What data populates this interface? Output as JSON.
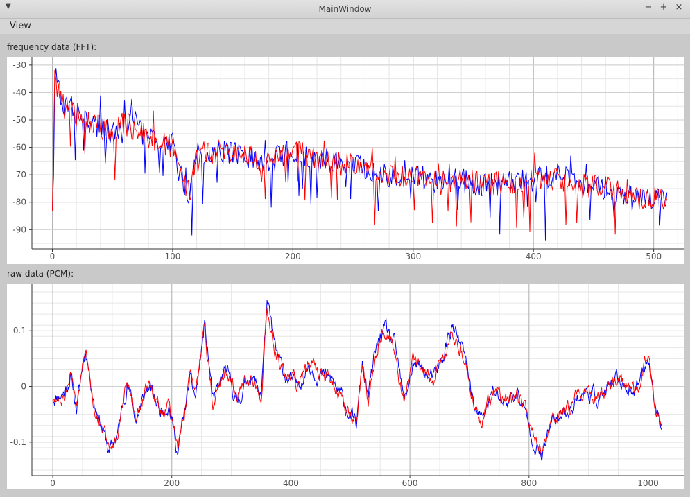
{
  "window": {
    "title": "MainWindow"
  },
  "menu": {
    "items": [
      {
        "label": "View"
      }
    ]
  },
  "fft_plot": {
    "label": "frequency data (FFT):"
  },
  "pcm_plot": {
    "label": "raw data (PCM):"
  },
  "chart_data": [
    {
      "type": "line",
      "title": "frequency data (FFT):",
      "xlabel": "",
      "ylabel": "",
      "xlim": [
        -17,
        525
      ],
      "ylim": [
        -97,
        -27
      ],
      "x_ticks": [
        0,
        100,
        200,
        300,
        400,
        500
      ],
      "y_ticks": [
        -30,
        -40,
        -50,
        -60,
        -70,
        -80,
        -90
      ],
      "grid": true,
      "n_points": 512,
      "series": [
        {
          "color": "#0000ff",
          "anchors_x": [
            0,
            2,
            10,
            20,
            30,
            40,
            50,
            60,
            80,
            100,
            114,
            120,
            140,
            160,
            180,
            200,
            220,
            240,
            260,
            280,
            300,
            320,
            340,
            360,
            380,
            400,
            420,
            440,
            460,
            480,
            500,
            511
          ],
          "anchors_y": [
            -80,
            -34,
            -45,
            -47,
            -50,
            -53,
            -55,
            -50,
            -56,
            -59,
            -80,
            -63,
            -61,
            -63,
            -65,
            -61,
            -64,
            -66,
            -67,
            -70,
            -70,
            -73,
            -72,
            -74,
            -73,
            -72,
            -70,
            -74,
            -75,
            -78,
            -79,
            -78
          ]
        },
        {
          "color": "#ff0000",
          "anchors_x": [
            0,
            2,
            10,
            20,
            30,
            40,
            50,
            60,
            80,
            100,
            114,
            120,
            140,
            160,
            180,
            200,
            220,
            240,
            260,
            280,
            300,
            320,
            340,
            360,
            380,
            400,
            420,
            440,
            460,
            480,
            500,
            511
          ],
          "anchors_y": [
            -81,
            -36,
            -46,
            -48,
            -50,
            -53,
            -55,
            -51,
            -57,
            -60,
            -78,
            -63,
            -61,
            -63,
            -65,
            -61,
            -64,
            -66,
            -67,
            -70,
            -70,
            -73,
            -72,
            -73,
            -73,
            -72,
            -71,
            -74,
            -75,
            -78,
            -79,
            -78
          ]
        }
      ]
    },
    {
      "type": "line",
      "title": "raw data (PCM):",
      "xlabel": "",
      "ylabel": "",
      "xlim": [
        -35,
        1060
      ],
      "ylim": [
        -0.16,
        0.185
      ],
      "x_ticks": [
        0,
        200,
        400,
        600,
        800,
        1000
      ],
      "y_ticks": [
        0.1,
        0,
        -0.1
      ],
      "y_tick_labels": [
        "0.1",
        "0",
        "-0.1"
      ],
      "grid": true,
      "n_points": 1024,
      "series": [
        {
          "color": "#0000ff",
          "anchors_x": [
            0,
            20,
            30,
            40,
            55,
            70,
            80,
            95,
            110,
            125,
            140,
            160,
            180,
            195,
            210,
            230,
            240,
            255,
            270,
            290,
            310,
            330,
            350,
            360,
            375,
            390,
            410,
            430,
            450,
            470,
            490,
            510,
            520,
            530,
            540,
            550,
            560,
            575,
            590,
            605,
            620,
            640,
            655,
            670,
            690,
            710,
            720,
            740,
            760,
            780,
            800,
            820,
            840,
            860,
            880,
            900,
            915,
            930,
            950,
            980,
            1000,
            1010,
            1020
          ],
          "anchors_y": [
            -0.02,
            -0.01,
            0.02,
            -0.04,
            0.07,
            -0.03,
            -0.06,
            -0.12,
            -0.08,
            0.01,
            -0.06,
            0.0,
            -0.04,
            -0.03,
            -0.12,
            0.01,
            -0.02,
            0.11,
            -0.03,
            0.03,
            -0.03,
            0.02,
            -0.01,
            0.15,
            0.06,
            0.02,
            0.0,
            0.04,
            0.02,
            0.01,
            -0.03,
            -0.07,
            0.04,
            -0.02,
            0.05,
            0.09,
            0.1,
            0.07,
            -0.03,
            0.04,
            0.03,
            0.01,
            0.05,
            0.11,
            0.06,
            -0.04,
            -0.06,
            -0.01,
            -0.03,
            -0.01,
            -0.07,
            -0.13,
            -0.06,
            -0.05,
            -0.02,
            -0.01,
            -0.02,
            -0.01,
            0.01,
            -0.01,
            0.06,
            -0.02,
            -0.06
          ]
        },
        {
          "color": "#ff0000",
          "anchors_x": [
            0,
            20,
            30,
            40,
            55,
            70,
            80,
            95,
            110,
            125,
            140,
            160,
            180,
            195,
            210,
            230,
            240,
            255,
            270,
            290,
            310,
            330,
            350,
            360,
            375,
            390,
            410,
            430,
            450,
            470,
            490,
            510,
            520,
            530,
            540,
            550,
            560,
            575,
            590,
            605,
            620,
            640,
            655,
            670,
            690,
            710,
            720,
            740,
            760,
            780,
            800,
            820,
            840,
            860,
            880,
            900,
            915,
            930,
            950,
            980,
            1000,
            1010,
            1020
          ],
          "anchors_y": [
            -0.02,
            -0.01,
            0.02,
            -0.04,
            0.07,
            -0.03,
            -0.06,
            -0.11,
            -0.08,
            0.01,
            -0.06,
            0.0,
            -0.04,
            -0.03,
            -0.11,
            0.01,
            -0.02,
            0.1,
            -0.03,
            0.03,
            -0.03,
            0.02,
            -0.01,
            0.14,
            0.06,
            0.02,
            0.0,
            0.04,
            0.02,
            0.01,
            -0.03,
            -0.07,
            0.04,
            -0.02,
            0.05,
            0.09,
            0.1,
            0.07,
            -0.03,
            0.04,
            0.03,
            0.01,
            0.05,
            0.1,
            0.06,
            -0.04,
            -0.06,
            -0.01,
            -0.03,
            -0.01,
            -0.07,
            -0.12,
            -0.06,
            -0.05,
            -0.02,
            -0.01,
            -0.02,
            -0.01,
            0.01,
            -0.01,
            0.06,
            -0.02,
            -0.06
          ]
        }
      ]
    }
  ]
}
